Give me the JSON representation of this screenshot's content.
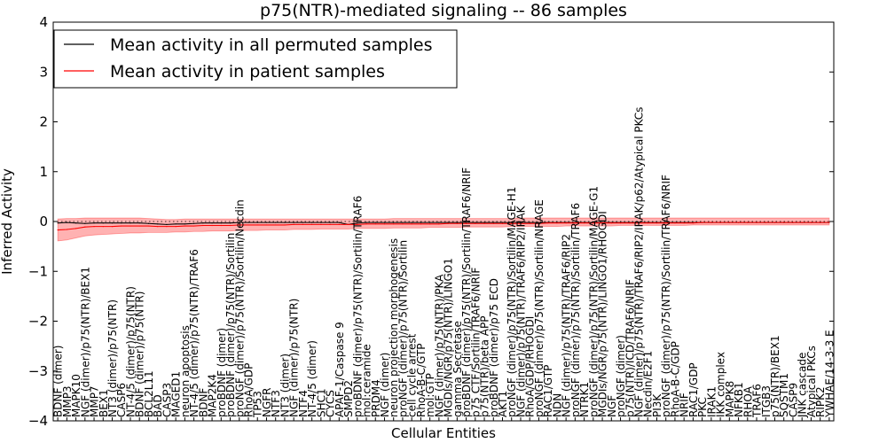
{
  "chart_data": {
    "type": "line",
    "title": "p75(NTR)-mediated signaling -- 86 samples",
    "xlabel": "Cellular Entities",
    "ylabel": "Inferred Activity",
    "ylim": [
      -4,
      4
    ],
    "yticks": [
      -4,
      -3,
      -2,
      -1,
      0,
      1,
      2,
      3,
      4
    ],
    "ytick_labels": [
      "−4",
      "−3",
      "−2",
      "−1",
      "0",
      "1",
      "2",
      "3",
      "4"
    ],
    "legend_position": "top-left",
    "legend": [
      {
        "label": "Mean activity in all permuted samples",
        "color": "#000000"
      },
      {
        "label": "Mean activity in patient samples",
        "color": "#ff0000"
      }
    ],
    "categories": [
      "BDNF (dimer)",
      "MMP3",
      "MAPK10",
      "NGF (dimer)/p75(NTR)/BEX1",
      "MMP7",
      "BEX1",
      "NT3 (dimer)/p75(NTR)",
      "CASP6",
      "NT-4/5 (dimer)/p75(NTR)",
      "BDNF (dimer)/p75(NTR)",
      "BCL2L11",
      "BAD",
      "CASP3",
      "MAGED1",
      "neuron apoptosis",
      "NT-4/5 (dimer)/p75(NTR)/TRAF6",
      "BDNF",
      "MAP2K4",
      "proBDNF (dimer)",
      "proBDNF (dimer)/p75(NTR)/Sortilin",
      "proNGF (dimer)/p75(NTR)/Sortilin/Necdin",
      "RhoA/GDP",
      "TP53",
      "NGFR",
      "NTF3",
      "NT3 (dimer)",
      "NGF (dimer)/p75(NTR)",
      "NTF4",
      "NT-4/5 (dimer)",
      "SHC1",
      "CYCS",
      "APAF-1/Caspase 9",
      "SMPD2",
      "proBDNF (dimer)/p75(NTR)/Sortilin/TRAF6",
      "mol:ceramide",
      "PRDM4",
      "NGF (dimer)",
      "neuron projection morphogenesis",
      "proNGF (dimer)/p75(NTR)/Sortilin",
      "cell cycle arrest",
      "RhoA-B-C/GTP",
      "mol:GTP",
      "NGF (dimer)/p75(NTR)/PKA",
      "MGDIs/NGR/p75(NTR)/LINGO1",
      "gamma Secretase",
      "proBDNF (dimer)/p75(NTR)/Sortilin/TRAF6/NRIF",
      "p75 CTF/Sortilin/TRAF6/NRIF",
      "p75(NTR)/beta APP",
      "proBDNF (dimer)/p75 ECD",
      "AKT1",
      "proNGF (dimer)/p75(NTR)/Sortilin/MAGE-H1",
      "NGF (dimer)/p75(NTR)/TRAF6/RIP2/IRAK",
      "RhoA/GDP/RHOGDI",
      "proNGF (dimer)/p75(NTR)/Sortilin/NRAGE",
      "RAC1/GTP",
      "NDN",
      "NGF (dimer)/p75(NTR)/TRAF6/RIP2",
      "proNGF (dimer)/p75(NTR)/Sortilin/TRAF6",
      "NTRK1",
      "proNGF (dimer)/p75(NTR)/Sortilin/MAGE-G1",
      "MGDIs/NGR/p75(NTR)/LINGO1/RHOGDI",
      "NGF",
      "proNGF (dimer)",
      "p75(NTR)/ICD/TRAF6/NRIF",
      "NGF (dimer)/p75(NTR)/TRAF6/RIP2/IRAK/p62/Atypical PKCs",
      "Necdin/E2F1",
      "PI3K",
      "proNGF (dimer)/p75(NTR)/Sortilin/TRAF6/NRIF",
      "RhoA-B-C/GDP",
      "NRIF",
      "RAC1/GDP",
      "PKC",
      "IRAK1",
      "IKK complex",
      "MAPK8",
      "NFKB1",
      "RHOA",
      "TRAF6",
      "ITGB3",
      "p75(NTR)/BEX1",
      "SQSTM1",
      "CASP9",
      "JNK cascade",
      "Atypical PKCs",
      "RIPK2",
      "YWHAE/14-3-3 E"
    ],
    "series": [
      {
        "name": "Mean activity in all permuted samples",
        "color": "#000000",
        "values": [
          -0.03,
          -0.02,
          -0.03,
          -0.04,
          -0.03,
          -0.03,
          -0.03,
          -0.03,
          -0.03,
          -0.03,
          -0.04,
          -0.05,
          -0.06,
          -0.05,
          -0.05,
          -0.04,
          -0.03,
          -0.03,
          -0.03,
          -0.03,
          -0.02,
          -0.02,
          -0.02,
          -0.02,
          -0.02,
          -0.02,
          -0.02,
          -0.02,
          -0.02,
          -0.02,
          -0.02,
          -0.02,
          -0.06,
          -0.03,
          -0.02,
          -0.02,
          -0.02,
          -0.02,
          -0.02,
          -0.02,
          -0.02,
          -0.02,
          -0.02,
          -0.02,
          -0.02,
          -0.02,
          -0.02,
          -0.02,
          -0.02,
          -0.02,
          -0.02,
          -0.02,
          -0.02,
          -0.02,
          -0.02,
          -0.02,
          -0.02,
          -0.02,
          -0.02,
          -0.02,
          -0.02,
          -0.02,
          -0.02,
          -0.02,
          -0.02,
          -0.02,
          -0.02,
          -0.02,
          -0.02,
          -0.02,
          -0.02,
          -0.02,
          -0.02,
          -0.02,
          -0.02,
          -0.02,
          -0.02,
          -0.02,
          -0.02,
          -0.02,
          -0.02,
          -0.02,
          -0.02,
          -0.02,
          -0.02,
          -0.02
        ]
      },
      {
        "name": "Mean activity in patient samples",
        "color": "#ff0000",
        "values": [
          -0.17,
          -0.16,
          -0.14,
          -0.11,
          -0.1,
          -0.1,
          -0.1,
          -0.09,
          -0.09,
          -0.09,
          -0.09,
          -0.1,
          -0.1,
          -0.1,
          -0.09,
          -0.09,
          -0.08,
          -0.08,
          -0.08,
          -0.08,
          -0.07,
          -0.07,
          -0.07,
          -0.07,
          -0.07,
          -0.07,
          -0.06,
          -0.06,
          -0.06,
          -0.06,
          -0.06,
          -0.06,
          -0.06,
          -0.06,
          -0.05,
          -0.05,
          -0.05,
          -0.05,
          -0.05,
          -0.05,
          -0.05,
          -0.05,
          -0.05,
          -0.04,
          -0.04,
          -0.04,
          -0.04,
          -0.04,
          -0.04,
          -0.04,
          -0.04,
          -0.04,
          -0.04,
          -0.04,
          -0.03,
          -0.03,
          -0.03,
          -0.03,
          -0.03,
          -0.03,
          -0.03,
          -0.03,
          -0.03,
          -0.03,
          -0.03,
          -0.03,
          -0.03,
          -0.03,
          -0.03,
          -0.03,
          -0.03,
          -0.02,
          -0.02,
          -0.02,
          -0.02,
          -0.02,
          -0.02,
          -0.02,
          -0.02,
          -0.02,
          -0.02,
          -0.02,
          -0.02,
          -0.02,
          -0.02,
          -0.02
        ]
      }
    ],
    "band": {
      "color": "#ff0000",
      "lower": [
        -0.39,
        -0.37,
        -0.33,
        -0.29,
        -0.27,
        -0.26,
        -0.25,
        -0.24,
        -0.23,
        -0.23,
        -0.22,
        -0.22,
        -0.22,
        -0.21,
        -0.21,
        -0.2,
        -0.2,
        -0.19,
        -0.19,
        -0.19,
        -0.18,
        -0.18,
        -0.18,
        -0.17,
        -0.17,
        -0.17,
        -0.16,
        -0.16,
        -0.16,
        -0.15,
        -0.15,
        -0.15,
        -0.15,
        -0.14,
        -0.14,
        -0.14,
        -0.14,
        -0.13,
        -0.13,
        -0.13,
        -0.13,
        -0.12,
        -0.12,
        -0.12,
        -0.12,
        -0.11,
        -0.11,
        -0.11,
        -0.11,
        -0.11,
        -0.1,
        -0.1,
        -0.1,
        -0.1,
        -0.1,
        -0.1,
        -0.09,
        -0.09,
        -0.09,
        -0.09,
        -0.09,
        -0.09,
        -0.08,
        -0.08,
        -0.08,
        -0.08,
        -0.08,
        -0.08,
        -0.08,
        -0.08,
        -0.07,
        -0.07,
        -0.07,
        -0.07,
        -0.07,
        -0.07,
        -0.07,
        -0.07,
        -0.07,
        -0.07,
        -0.07,
        -0.07,
        -0.07,
        -0.07,
        -0.07,
        -0.07
      ],
      "upper": [
        0.05,
        0.06,
        0.06,
        0.07,
        0.07,
        0.07,
        0.07,
        0.07,
        0.07,
        0.07,
        0.06,
        0.05,
        0.04,
        0.04,
        0.05,
        0.05,
        0.05,
        0.05,
        0.05,
        0.05,
        0.05,
        0.05,
        0.05,
        0.05,
        0.05,
        0.05,
        0.05,
        0.05,
        0.05,
        0.05,
        0.05,
        0.05,
        0.05,
        0.05,
        0.05,
        0.05,
        0.05,
        0.06,
        0.06,
        0.06,
        0.06,
        0.06,
        0.06,
        0.06,
        0.06,
        0.06,
        0.06,
        0.06,
        0.06,
        0.06,
        0.06,
        0.07,
        0.07,
        0.07,
        0.07,
        0.07,
        0.07,
        0.07,
        0.07,
        0.07,
        0.07,
        0.07,
        0.07,
        0.07,
        0.07,
        0.07,
        0.07,
        0.07,
        0.07,
        0.07,
        0.07,
        0.07,
        0.07,
        0.07,
        0.07,
        0.07,
        0.07,
        0.07,
        0.07,
        0.07,
        0.07,
        0.07,
        0.07,
        0.07,
        0.07,
        0.07
      ]
    }
  }
}
